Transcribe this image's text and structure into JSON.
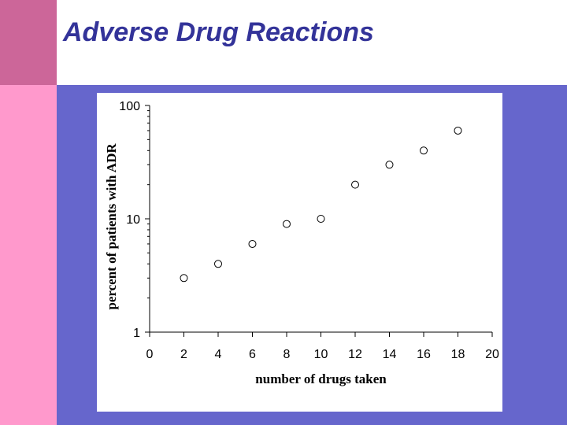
{
  "slide": {
    "title": "Adverse Drug Reactions",
    "colors": {
      "left_bar_top": "#cc6699",
      "left_bar_bottom": "#ff99cc",
      "content_bg": "#6666cc",
      "title_text": "#333399",
      "chart_bg": "#ffffff"
    }
  },
  "chart_data": {
    "type": "scatter",
    "title": "",
    "xlabel": "number of drugs taken",
    "ylabel": "percent of patients with ADR",
    "x_scale": "linear",
    "y_scale": "log",
    "xlim": [
      0,
      20
    ],
    "ylim": [
      1,
      100
    ],
    "x_ticks": [
      "0",
      "2",
      "4",
      "6",
      "8",
      "10",
      "12",
      "14",
      "16",
      "18",
      "20"
    ],
    "y_ticks": [
      "1",
      "10",
      "100"
    ],
    "grid": false,
    "legend": "none",
    "marker": "open-circle",
    "points": [
      {
        "x": 2,
        "y": 3
      },
      {
        "x": 4,
        "y": 4
      },
      {
        "x": 6,
        "y": 6
      },
      {
        "x": 8,
        "y": 9
      },
      {
        "x": 10,
        "y": 10
      },
      {
        "x": 12,
        "y": 20
      },
      {
        "x": 14,
        "y": 30
      },
      {
        "x": 16,
        "y": 40
      },
      {
        "x": 18,
        "y": 60
      }
    ]
  }
}
